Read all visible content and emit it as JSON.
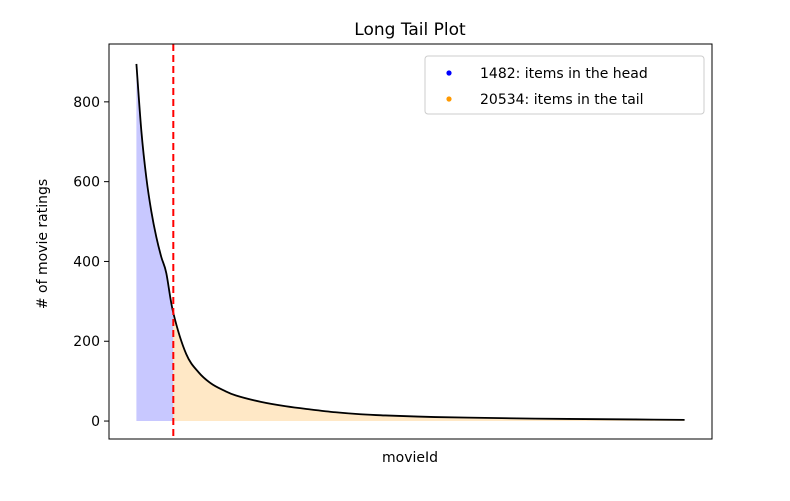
{
  "chart_data": {
    "type": "area",
    "title": "Long Tail Plot",
    "xlabel": "movieId",
    "ylabel": "# of movie ratings",
    "xlim": [
      0,
      22016
    ],
    "ylim": [
      0,
      900
    ],
    "yticks": [
      0,
      200,
      400,
      600,
      800
    ],
    "yticklabels": [
      "0",
      "200",
      "400",
      "600",
      "800"
    ],
    "grid": false,
    "legend_position": "top-right",
    "legend": [
      {
        "label": "1482: items in the head",
        "color": "#0000ff"
      },
      {
        "label": "20534: items in the tail",
        "color": "#ff9900"
      }
    ],
    "head_cutoff": 1482,
    "cutoff_line_color": "#ff0000",
    "head_fill_color": "#c8c8ff",
    "tail_fill_color": "#ffe8c6",
    "curve_color": "#000000",
    "series": [
      {
        "x": [
          0,
          200,
          400,
          600,
          800,
          1000,
          1200,
          1482,
          2000,
          2500,
          3000,
          3500,
          4000,
          5000,
          6000,
          7000,
          8000,
          9000,
          10000,
          12000,
          14000,
          16000,
          18000,
          20000,
          22016
        ],
        "values": [
          895,
          726,
          609,
          525,
          461,
          411,
          371,
          271,
          168,
          122,
          94,
          77,
          64,
          48,
          37,
          29,
          22,
          17,
          14,
          10,
          8,
          6,
          5,
          4,
          3
        ]
      }
    ]
  }
}
